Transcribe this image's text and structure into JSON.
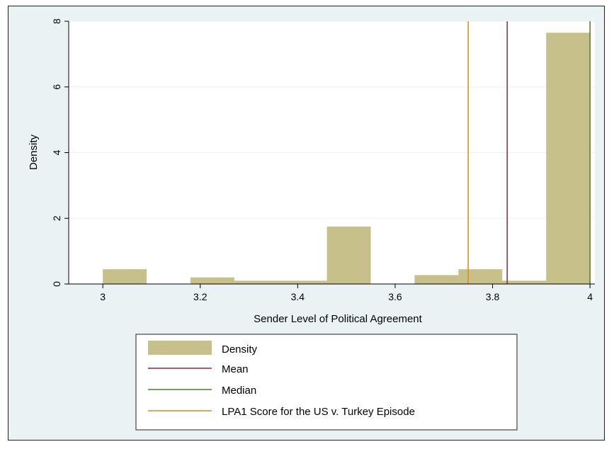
{
  "chart_data": {
    "type": "bar",
    "xlabel": "Sender Level of Political Agreement",
    "ylabel": "Density",
    "xlim": [
      2.93,
      4.01
    ],
    "ylim": [
      0,
      8
    ],
    "xticks": [
      "3",
      "3.2",
      "3.4",
      "3.6",
      "3.8",
      "4"
    ],
    "yticks": [
      "0",
      "2",
      "4",
      "6",
      "8"
    ],
    "grid": true,
    "legend_placement": "bottom",
    "bars": [
      {
        "x0": 3.0,
        "x1": 3.09,
        "density": 0.45
      },
      {
        "x0": 3.18,
        "x1": 3.27,
        "density": 0.2
      },
      {
        "x0": 3.27,
        "x1": 3.46,
        "density": 0.1
      },
      {
        "x0": 3.46,
        "x1": 3.55,
        "density": 1.75
      },
      {
        "x0": 3.64,
        "x1": 3.73,
        "density": 0.27
      },
      {
        "x0": 3.73,
        "x1": 3.82,
        "density": 0.45
      },
      {
        "x0": 3.82,
        "x1": 3.91,
        "density": 0.1
      },
      {
        "x0": 3.91,
        "x1": 4.0,
        "density": 7.65
      }
    ],
    "reference_lines": [
      {
        "name": "Mean",
        "x": 3.83,
        "color": "#8b2a3c"
      },
      {
        "name": "Median",
        "x": 4.0,
        "color": "#4f7a2f"
      },
      {
        "name": "LPA1 Score for the US v. Turkey Episode",
        "x": 3.75,
        "color": "#e08a1a"
      }
    ],
    "legend": [
      "Density",
      "Mean",
      "Median",
      "LPA1 Score for the US v. Turkey Episode"
    ],
    "colors": {
      "bar": "#c8c08a",
      "plot_bg": "#ffffff",
      "outer_bg": "#eaf2f3",
      "grid": "#eaf2f3"
    }
  }
}
